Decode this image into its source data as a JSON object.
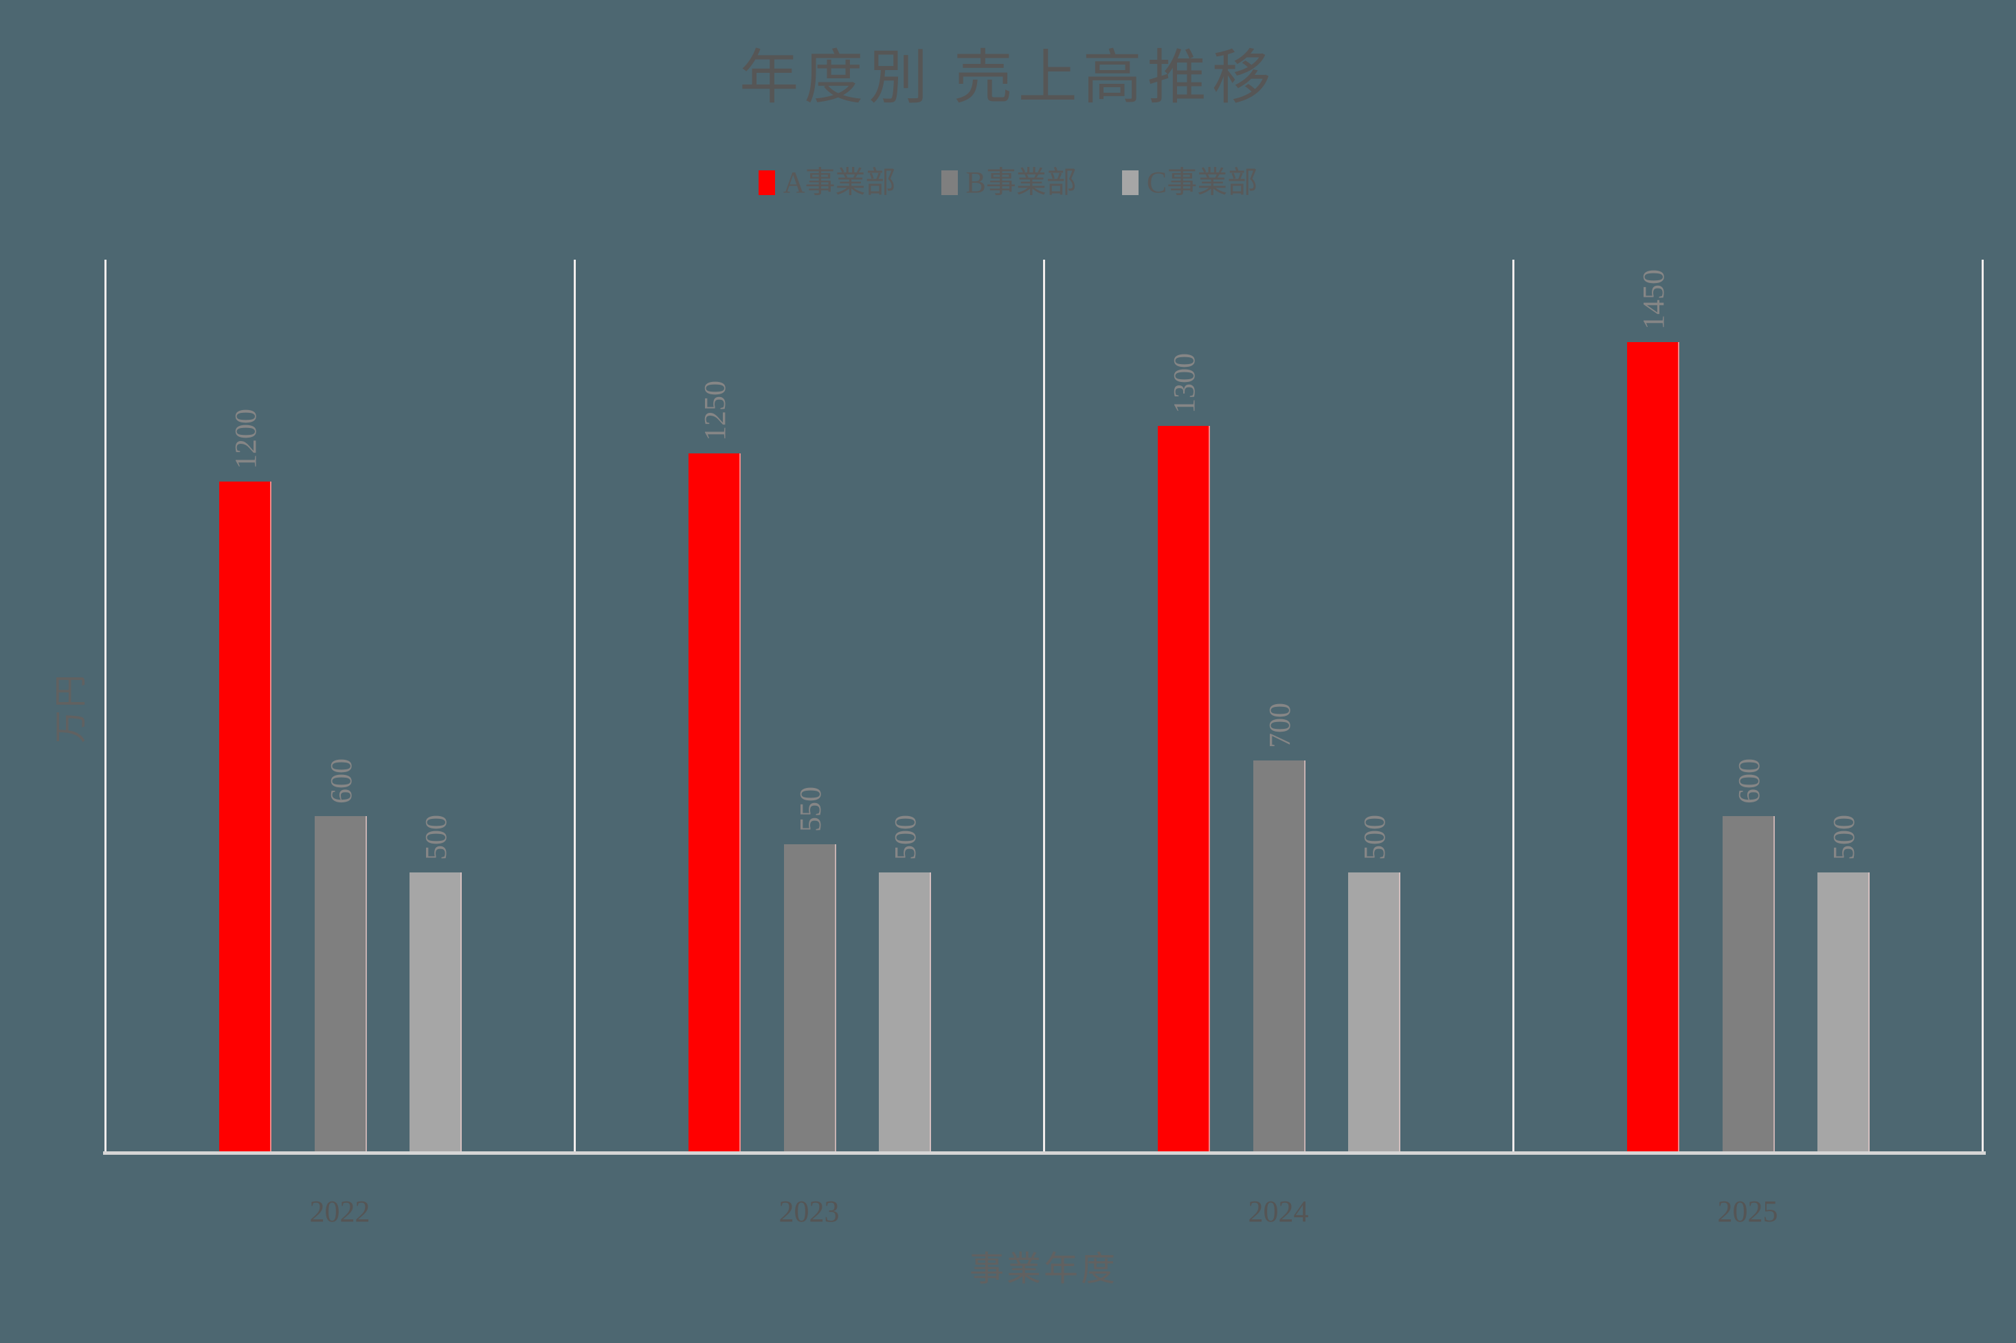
{
  "title": "年度別 売上高推移",
  "axes": {
    "x_title": "事業年度",
    "y_title": "万円"
  },
  "legend": {
    "items": [
      {
        "label": "A事業部",
        "color": "#ff0000"
      },
      {
        "label": "B事業部",
        "color": "#7f7f7f"
      },
      {
        "label": "C事業部",
        "color": "#a6a6a6"
      }
    ]
  },
  "colors": {
    "background": "#4d6771",
    "axis_line": "#d6d6d6",
    "grid_line": "#f1eded",
    "title_text": "#565656",
    "data_label_text": "#868686"
  },
  "chart_data": {
    "type": "bar",
    "title": "年度別 売上高推移",
    "xlabel": "事業年度",
    "ylabel": "万円",
    "categories": [
      "2022",
      "2023",
      "2024",
      "2025"
    ],
    "series": [
      {
        "name": "A事業部",
        "color": "#ff0000",
        "values": [
          1200,
          1250,
          1300,
          1450
        ]
      },
      {
        "name": "B事業部",
        "color": "#7f7f7f",
        "values": [
          600,
          550,
          700,
          600
        ]
      },
      {
        "name": "C事業部",
        "color": "#a6a6a6",
        "values": [
          500,
          500,
          500,
          500
        ]
      }
    ],
    "ylim": [
      0,
      1600
    ],
    "grid": "vertical panel separators only",
    "legend_position": "top-center",
    "data_labels": "rotated 90deg above each bar"
  }
}
